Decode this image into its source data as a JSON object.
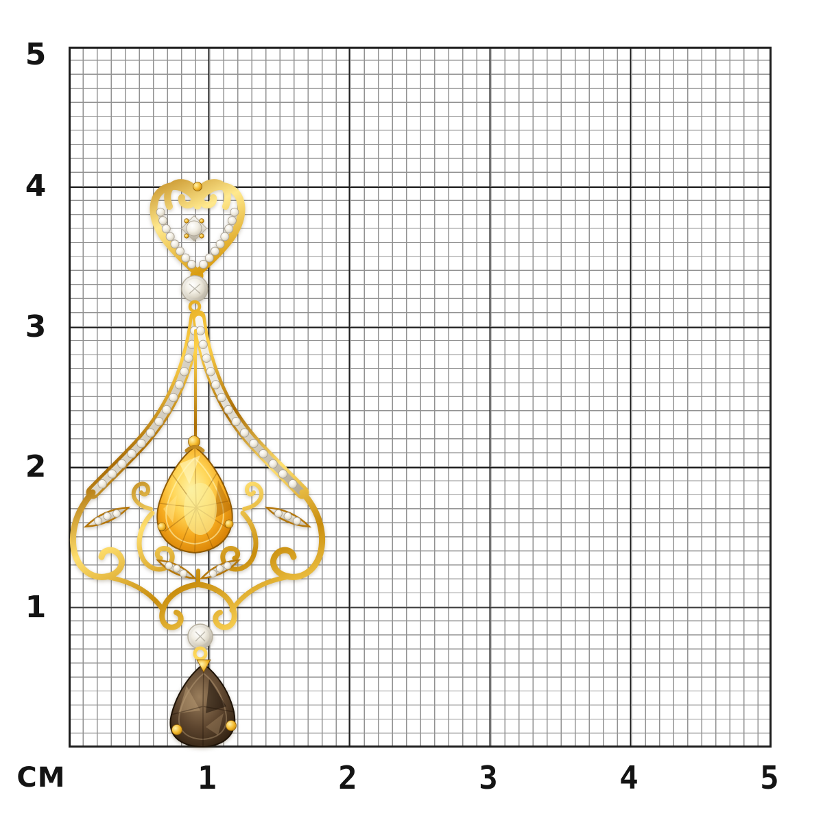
{
  "scale_ruler": {
    "unit_label": "CM",
    "left_axis_labels": [
      "5",
      "4",
      "3",
      "2",
      "1"
    ],
    "bottom_axis_labels": [
      "1",
      "2",
      "3",
      "4",
      "5"
    ],
    "minor_divisions_per_cm": 10
  },
  "colors": {
    "background": "#ffffff",
    "grid_minor_line": "#929292",
    "grid_major_line": "#1c1c1c",
    "axis_label": "#141414",
    "gold": "#e7ac1f",
    "gold_highlight": "#fff2b0",
    "gold_shadow": "#9c6a06",
    "diamond": "#f1ede2",
    "citrine": "#f2a81e",
    "smoky_quartz": "#46321f"
  },
  "pendant": {
    "metal": "yellow-gold",
    "gemstones": [
      {
        "name": "pear-citrine-center-stone",
        "color": "#f2a81e"
      },
      {
        "name": "pear-smoky-quartz-drop",
        "color": "#46321f"
      },
      {
        "name": "round-diamond-top-bezel",
        "color": "#f1ede2"
      },
      {
        "name": "round-diamond-bottom-bezel",
        "color": "#f1ede2"
      },
      {
        "name": "heart-center-diamond",
        "color": "#f1ede2"
      },
      {
        "name": "pave-diamond-accents",
        "color": "#f1ede2"
      }
    ]
  }
}
